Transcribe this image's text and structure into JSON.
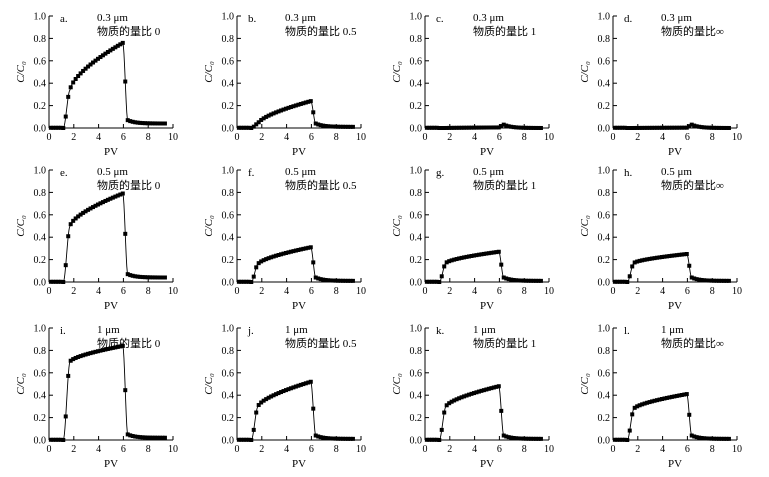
{
  "figure": {
    "chart_data": [
      {
        "panel": "a.",
        "size": "0.3 μm",
        "ratio_label": "物质的量比 0",
        "type": "scatter",
        "xlabel": "PV",
        "ylabel": "C/C₀",
        "xlim": [
          0,
          10
        ],
        "ylim": [
          0,
          1.0
        ],
        "xticks": [
          0,
          2,
          4,
          6,
          8,
          10
        ],
        "yticks": [
          0.0,
          0.2,
          0.4,
          0.6,
          0.8,
          1.0
        ],
        "plateau": [
          0.34,
          0.76
        ],
        "tail": 0.04
      },
      {
        "panel": "b.",
        "size": "0.3 μm",
        "ratio_label": "物质的量比 0.5",
        "type": "scatter",
        "xlabel": "PV",
        "ylabel": "C/C₀",
        "xlim": [
          0,
          10
        ],
        "ylim": [
          0,
          1.0
        ],
        "xticks": [
          0,
          2,
          4,
          6,
          8,
          10
        ],
        "yticks": [
          0.0,
          0.2,
          0.4,
          0.6,
          0.8,
          1.0
        ],
        "plateau": [
          0.04,
          0.24
        ],
        "tail": 0.01
      },
      {
        "panel": "c.",
        "size": "0.3 μm",
        "ratio_label": "物质的量比 1",
        "type": "scatter",
        "xlabel": "PV",
        "ylabel": "C/C₀",
        "xlim": [
          0,
          10
        ],
        "ylim": [
          0,
          1.0
        ],
        "xticks": [
          0,
          2,
          4,
          6,
          8,
          10
        ],
        "yticks": [
          0.0,
          0.2,
          0.4,
          0.6,
          0.8,
          1.0
        ],
        "plateau": [
          0.0,
          0.005
        ],
        "tail": 0.0
      },
      {
        "panel": "d.",
        "size": "0.3 μm",
        "ratio_label": "物质的量比∞",
        "type": "scatter",
        "xlabel": "PV",
        "ylabel": "C/C₀",
        "xlim": [
          0,
          10
        ],
        "ylim": [
          0,
          1.0
        ],
        "xticks": [
          0,
          2,
          4,
          6,
          8,
          10
        ],
        "yticks": [
          0.0,
          0.2,
          0.4,
          0.6,
          0.8,
          1.0
        ],
        "plateau": [
          0.0,
          0.003
        ],
        "tail": 0.0
      },
      {
        "panel": "e.",
        "size": "0.5 μm",
        "ratio_label": "物质的量比 0",
        "type": "scatter",
        "xlabel": "PV",
        "ylabel": "C/C₀",
        "xlim": [
          0,
          10
        ],
        "ylim": [
          0,
          1.0
        ],
        "xticks": [
          0,
          2,
          4,
          6,
          8,
          10
        ],
        "yticks": [
          0.0,
          0.2,
          0.4,
          0.6,
          0.8,
          1.0
        ],
        "plateau": [
          0.5,
          0.79
        ],
        "tail": 0.04
      },
      {
        "panel": "f.",
        "size": "0.5 μm",
        "ratio_label": "物质的量比 0.5",
        "type": "scatter",
        "xlabel": "PV",
        "ylabel": "C/C₀",
        "xlim": [
          0,
          10
        ],
        "ylim": [
          0,
          1.0
        ],
        "xticks": [
          0,
          2,
          4,
          6,
          8,
          10
        ],
        "yticks": [
          0.0,
          0.2,
          0.4,
          0.6,
          0.8,
          1.0
        ],
        "plateau": [
          0.16,
          0.31
        ],
        "tail": 0.01
      },
      {
        "panel": "g.",
        "size": "0.5 μm",
        "ratio_label": "物质的量比 1",
        "type": "scatter",
        "xlabel": "PV",
        "ylabel": "C/C₀",
        "xlim": [
          0,
          10
        ],
        "ylim": [
          0,
          1.0
        ],
        "xticks": [
          0,
          2,
          4,
          6,
          8,
          10
        ],
        "yticks": [
          0.0,
          0.2,
          0.4,
          0.6,
          0.8,
          1.0
        ],
        "plateau": [
          0.17,
          0.27
        ],
        "tail": 0.01
      },
      {
        "panel": "h.",
        "size": "0.5 μm",
        "ratio_label": "物质的量比∞",
        "type": "scatter",
        "xlabel": "PV",
        "ylabel": "C/C₀",
        "xlim": [
          0,
          10
        ],
        "ylim": [
          0,
          1.0
        ],
        "xticks": [
          0,
          2,
          4,
          6,
          8,
          10
        ],
        "yticks": [
          0.0,
          0.2,
          0.4,
          0.6,
          0.8,
          1.0
        ],
        "plateau": [
          0.17,
          0.25
        ],
        "tail": 0.01
      },
      {
        "panel": "i.",
        "size": "1 μm",
        "ratio_label": "物质的量比 0",
        "type": "scatter",
        "xlabel": "PV",
        "ylabel": "C/C₀",
        "xlim": [
          0,
          10
        ],
        "ylim": [
          0,
          1.0
        ],
        "xticks": [
          0,
          2,
          4,
          6,
          8,
          10
        ],
        "yticks": [
          0.0,
          0.2,
          0.4,
          0.6,
          0.8,
          1.0
        ],
        "plateau": [
          0.7,
          0.84
        ],
        "tail": 0.02
      },
      {
        "panel": "j.",
        "size": "1 μm",
        "ratio_label": "物质的量比 0.5",
        "type": "scatter",
        "xlabel": "PV",
        "ylabel": "C/C₀",
        "xlim": [
          0,
          10
        ],
        "ylim": [
          0,
          1.0
        ],
        "xticks": [
          0,
          2,
          4,
          6,
          8,
          10
        ],
        "yticks": [
          0.0,
          0.2,
          0.4,
          0.6,
          0.8,
          1.0
        ],
        "plateau": [
          0.3,
          0.52
        ],
        "tail": 0.01
      },
      {
        "panel": "k.",
        "size": "1 μm",
        "ratio_label": "物质的量比 1",
        "type": "scatter",
        "xlabel": "PV",
        "ylabel": "C/C₀",
        "xlim": [
          0,
          10
        ],
        "ylim": [
          0,
          1.0
        ],
        "xticks": [
          0,
          2,
          4,
          6,
          8,
          10
        ],
        "yticks": [
          0.0,
          0.2,
          0.4,
          0.6,
          0.8,
          1.0
        ],
        "plateau": [
          0.3,
          0.48
        ],
        "tail": 0.01
      },
      {
        "panel": "l.",
        "size": "1 μm",
        "ratio_label": "物质的量比∞",
        "type": "scatter",
        "xlabel": "PV",
        "ylabel": "C/C₀",
        "xlim": [
          0,
          10
        ],
        "ylim": [
          0,
          1.0
        ],
        "xticks": [
          0,
          2,
          4,
          6,
          8,
          10
        ],
        "yticks": [
          0.0,
          0.2,
          0.4,
          0.6,
          0.8,
          1.0
        ],
        "plateau": [
          0.28,
          0.41
        ],
        "tail": 0.01
      }
    ]
  }
}
